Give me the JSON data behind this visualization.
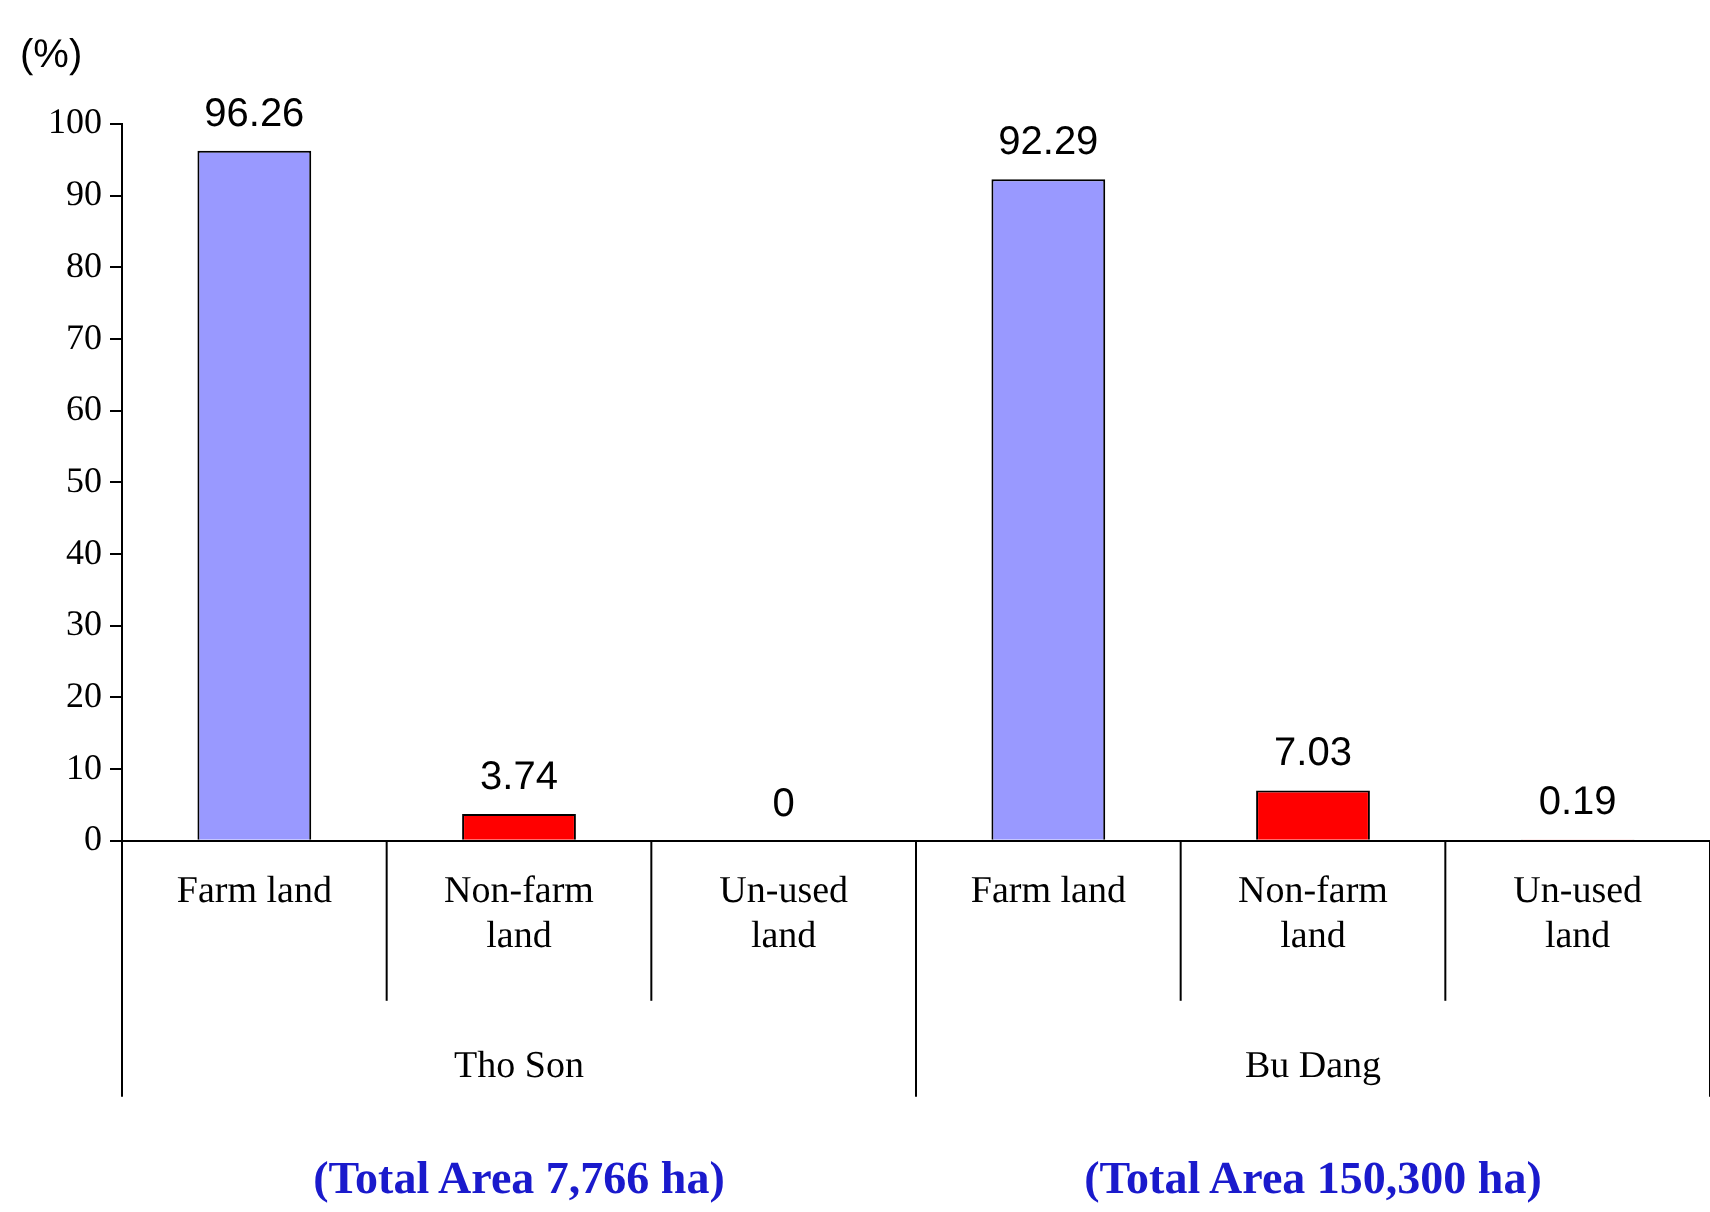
{
  "chart_data": {
    "type": "bar",
    "ylabel": "(%)",
    "categories": [
      "Farm land",
      "Non-farm land",
      "Un-used land",
      "Farm land",
      "Non-farm land",
      "Un-used land"
    ],
    "values": [
      96.26,
      3.74,
      0,
      92.29,
      7.03,
      0.19
    ],
    "colors": [
      "#9999ff",
      "#ff0000",
      "#ff0000",
      "#9999ff",
      "#ff0000",
      "#ff0000"
    ],
    "ylim": [
      0,
      100
    ],
    "yticks": [
      0,
      10,
      20,
      30,
      40,
      50,
      60,
      70,
      80,
      90,
      100
    ],
    "grid": false,
    "legend": false,
    "data_labels": true,
    "annotations": [
      "Tho Son",
      "Bu Dang",
      "(Total Area 7,766 ha)",
      "(Total Area 150,300 ha)"
    ]
  }
}
